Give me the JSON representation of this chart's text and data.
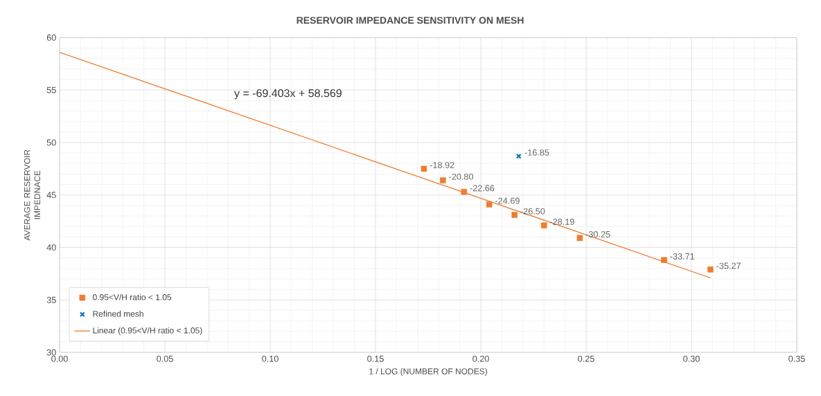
{
  "chart_data": {
    "type": "scatter",
    "title": "RESERVOIR IMPEDANCE SENSITIVITY ON MESH",
    "xlabel": "1 / LOG (NUMBER OF NODES)",
    "ylabel": "AVERAGE RESERVOIR IMPEDNACE",
    "series": [
      {
        "name": "0.95<V/H ratio < 1.05",
        "marker": "square",
        "color": "#ed7d31",
        "x": [
          0.173,
          0.182,
          0.192,
          0.204,
          0.216,
          0.23,
          0.247,
          0.287,
          0.309
        ],
        "values": [
          47.5,
          46.4,
          45.3,
          44.1,
          43.1,
          42.1,
          40.9,
          38.8,
          37.9
        ]
      },
      {
        "name": "Refined mesh",
        "marker": "cross",
        "color": "#0070c0",
        "x": [
          0.218
        ],
        "values": [
          48.7
        ]
      },
      {
        "name": "Linear (0.95<V/H ratio < 1.05)",
        "type": "line",
        "marker": "none",
        "color": "#ed7d31",
        "x": [
          0.0,
          0.309
        ],
        "values": [
          58.6,
          37.1
        ]
      }
    ],
    "annotations": [
      "y = -69.403x + 58.569",
      {
        "text": "-18.92",
        "x": 0.173,
        "y": 47.5
      },
      {
        "text": "-20.80",
        "x": 0.182,
        "y": 46.4
      },
      {
        "text": "-22.66",
        "x": 0.192,
        "y": 45.3
      },
      {
        "text": "-24.69",
        "x": 0.204,
        "y": 44.1
      },
      {
        "text": "-26.50",
        "x": 0.216,
        "y": 43.1
      },
      {
        "text": "-28.19",
        "x": 0.23,
        "y": 42.1
      },
      {
        "text": "-30.25",
        "x": 0.247,
        "y": 40.9
      },
      {
        "text": "-33.71",
        "x": 0.287,
        "y": 38.8
      },
      {
        "text": "-35.27",
        "x": 0.309,
        "y": 37.9
      },
      {
        "text": "-16.85",
        "x": 0.218,
        "y": 48.7
      }
    ],
    "xlim": [
      0,
      0.35
    ],
    "xticks": [
      {
        "value": 0,
        "label": "0.00"
      },
      {
        "value": 0.05,
        "label": "0.05"
      },
      {
        "value": 0.1,
        "label": "0.10"
      },
      {
        "value": 0.15,
        "label": "0.15"
      },
      {
        "value": 0.2,
        "label": "0.20"
      },
      {
        "value": 0.25,
        "label": "0.25"
      },
      {
        "value": 0.3,
        "label": "0.30"
      },
      {
        "value": 0.35,
        "label": "0.35"
      }
    ],
    "ylim": [
      30,
      60
    ],
    "yticks": [
      30,
      35,
      40,
      45,
      50,
      55,
      60
    ],
    "grid": true,
    "legend": "bottom left"
  }
}
